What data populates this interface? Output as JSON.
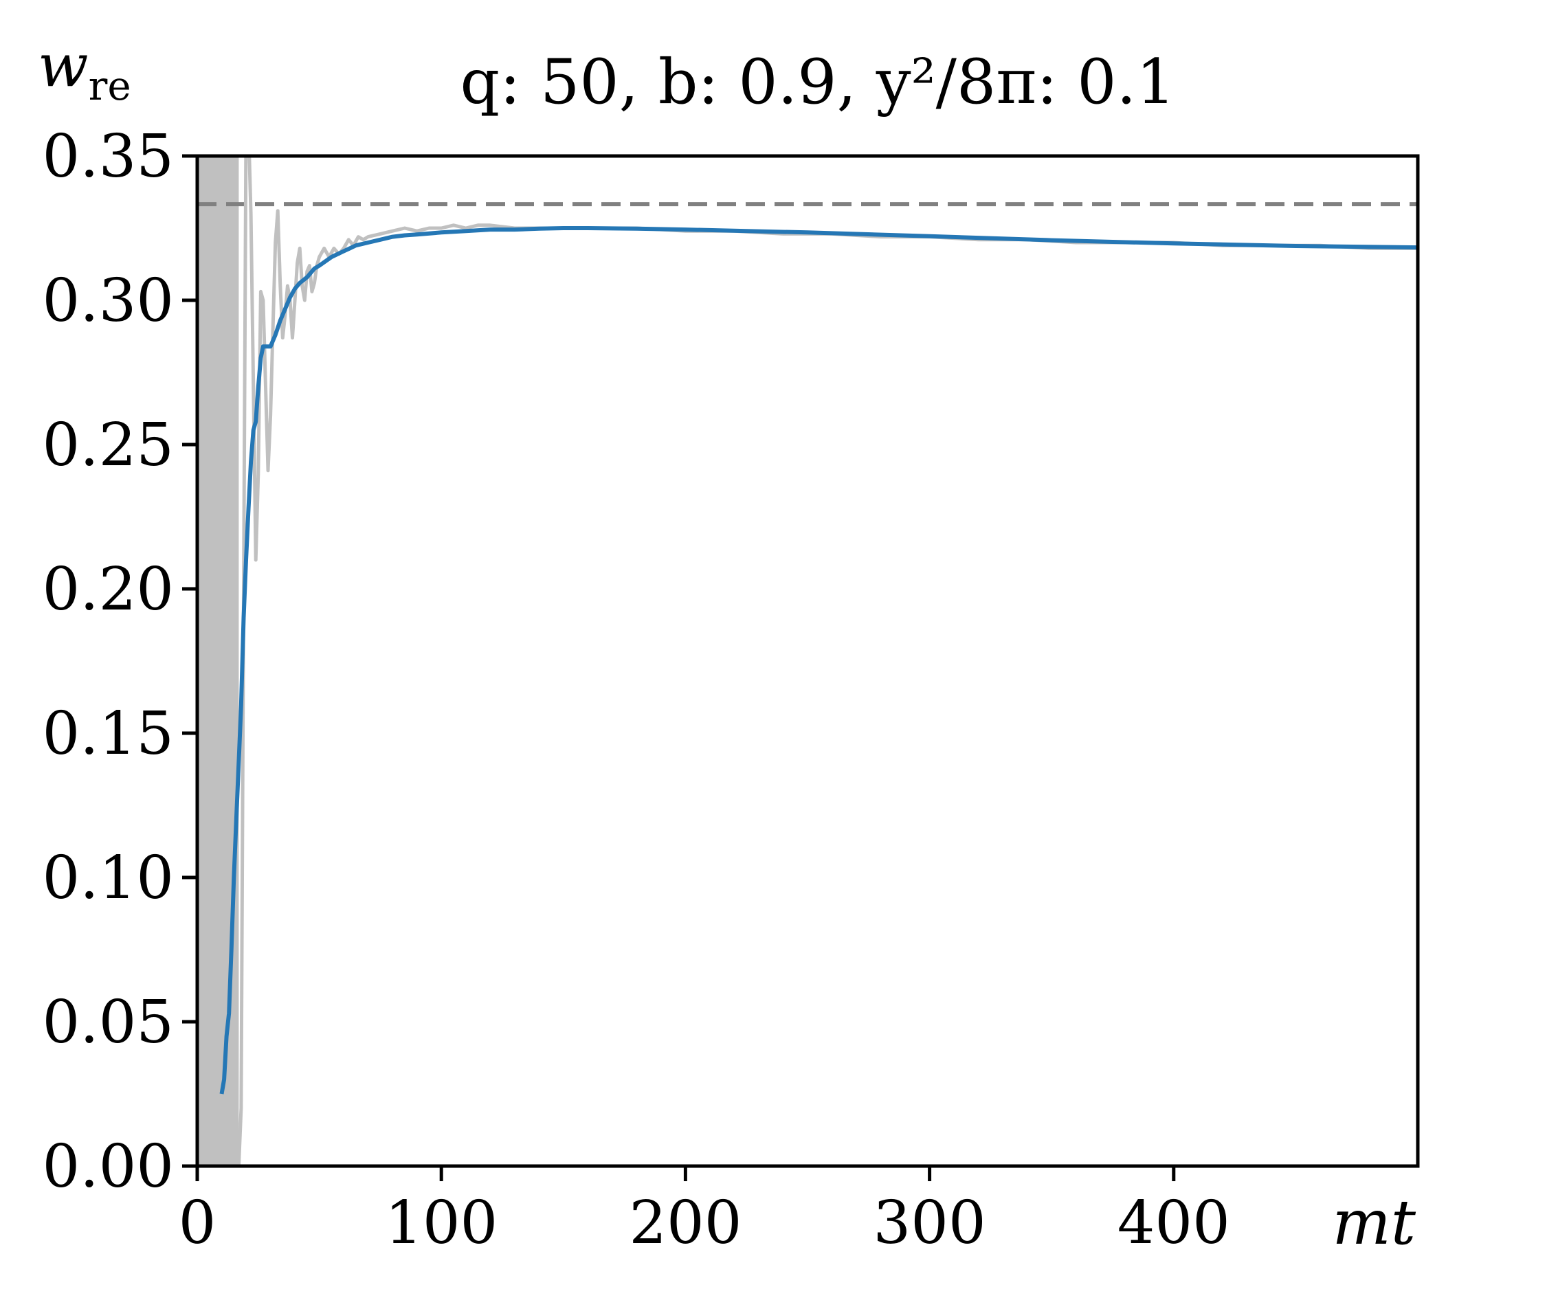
{
  "chart_data": {
    "type": "line",
    "title": "q: 50, b: 0.9, y²/8π: 0.1",
    "xlabel": "mt",
    "ylabel": "w",
    "ylabel_subscript": "re",
    "xlim": [
      0,
      500
    ],
    "ylim": [
      0,
      0.35
    ],
    "xticks": [
      0,
      100,
      200,
      300,
      400
    ],
    "xtick_labels": [
      "0",
      "100",
      "200",
      "300",
      "400"
    ],
    "yticks": [
      0,
      0.05,
      0.1,
      0.15,
      0.2,
      0.25,
      0.3,
      0.35
    ],
    "ytick_labels": [
      "0.00",
      "0.05",
      "0.10",
      "0.15",
      "0.20",
      "0.25",
      "0.30",
      "0.35"
    ],
    "grid": false,
    "reference_line": {
      "y": 0.3333,
      "style": "dashed",
      "color": "#808080"
    },
    "shaded_region": {
      "x": [
        0,
        17
      ],
      "color": "#c0c0c0"
    },
    "series": [
      {
        "role": "raw",
        "color": "#c0c0c0",
        "x": [
          17,
          18,
          19,
          20,
          21,
          22,
          23,
          24,
          25,
          26,
          27,
          28,
          29,
          30,
          31,
          32,
          33,
          34,
          35,
          36,
          37,
          38,
          39,
          40,
          41,
          42,
          43,
          44,
          45,
          46,
          47,
          48,
          49,
          50,
          52,
          54,
          56,
          58,
          60,
          62,
          64,
          66,
          68,
          70,
          75,
          80,
          85,
          90,
          95,
          100,
          105,
          110,
          115,
          120,
          130,
          140,
          150,
          160,
          170,
          180,
          200,
          220,
          240,
          260,
          280,
          300,
          320,
          340,
          360,
          380,
          400,
          420,
          440,
          460,
          480,
          500
        ],
        "values": [
          0.0,
          0.02,
          0.2,
          0.36,
          0.36,
          0.33,
          0.27,
          0.21,
          0.24,
          0.303,
          0.3,
          0.27,
          0.241,
          0.26,
          0.29,
          0.32,
          0.331,
          0.305,
          0.287,
          0.295,
          0.305,
          0.3,
          0.287,
          0.3,
          0.313,
          0.318,
          0.305,
          0.3,
          0.31,
          0.312,
          0.303,
          0.306,
          0.312,
          0.315,
          0.318,
          0.315,
          0.318,
          0.316,
          0.318,
          0.321,
          0.319,
          0.322,
          0.321,
          0.322,
          0.323,
          0.324,
          0.325,
          0.324,
          0.325,
          0.325,
          0.326,
          0.325,
          0.326,
          0.326,
          0.325,
          0.325,
          0.325,
          0.325,
          0.325,
          0.325,
          0.324,
          0.324,
          0.323,
          0.323,
          0.322,
          0.322,
          0.321,
          0.321,
          0.32,
          0.32,
          0.32,
          0.319,
          0.319,
          0.319,
          0.318,
          0.318
        ]
      },
      {
        "role": "smoothed",
        "color": "#2577b5",
        "x": [
          10,
          11,
          12,
          13,
          14,
          15,
          16,
          17,
          18,
          19,
          20,
          21,
          22,
          23,
          24,
          25,
          26,
          27,
          28,
          29,
          30,
          32,
          34,
          36,
          38,
          40,
          42,
          45,
          48,
          50,
          55,
          60,
          65,
          70,
          75,
          80,
          85,
          90,
          100,
          110,
          120,
          130,
          140,
          150,
          160,
          180,
          200,
          250,
          300,
          350,
          400,
          450,
          500
        ],
        "values": [
          0.025,
          0.03,
          0.045,
          0.053,
          0.075,
          0.1,
          0.12,
          0.14,
          0.16,
          0.19,
          0.21,
          0.228,
          0.244,
          0.255,
          0.258,
          0.27,
          0.28,
          0.284,
          0.284,
          0.284,
          0.284,
          0.288,
          0.293,
          0.297,
          0.301,
          0.304,
          0.306,
          0.308,
          0.311,
          0.312,
          0.315,
          0.317,
          0.319,
          0.32,
          0.321,
          0.322,
          0.3225,
          0.3228,
          0.3235,
          0.324,
          0.3245,
          0.3245,
          0.3248,
          0.325,
          0.325,
          0.3248,
          0.3245,
          0.3235,
          0.3222,
          0.3208,
          0.3197,
          0.3188,
          0.3183
        ]
      }
    ]
  }
}
